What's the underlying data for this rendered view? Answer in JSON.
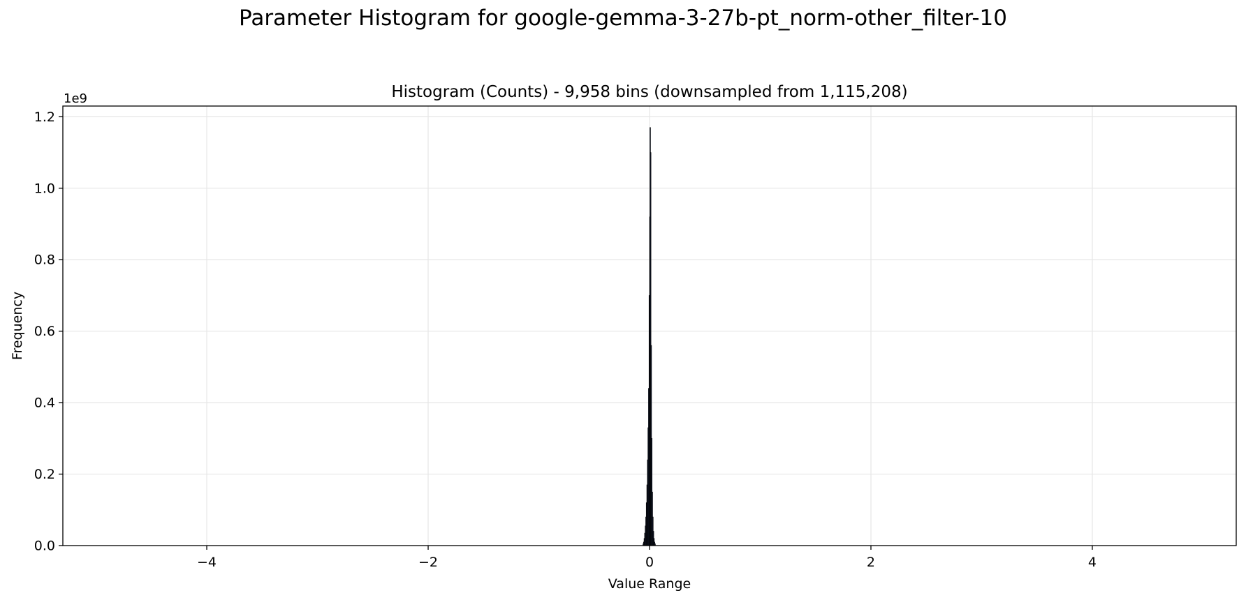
{
  "figure_title": "Parameter Histogram for google-gemma-3-27b-pt_norm-other_filter-10",
  "colors": {
    "bar_fill": "#1f2a4a",
    "bar_edge": "#000000",
    "grid": "#e6e6e6",
    "axis": "#000000"
  },
  "chart_data": {
    "type": "bar",
    "title": "Histogram (Counts) - 9,958 bins (downsampled from 1,115,208)",
    "xlabel": "Value Range",
    "ylabel": "Frequency",
    "y_offset_label": "1e9",
    "xlim": [
      -5.3,
      5.3
    ],
    "ylim": [
      0,
      1.23
    ],
    "xticks": [
      -4,
      -2,
      0,
      2,
      4
    ],
    "xtick_labels": [
      "−4",
      "−2",
      "0",
      "2",
      "4"
    ],
    "yticks": [
      0.0,
      0.2,
      0.4,
      0.6,
      0.8,
      1.0,
      1.2
    ],
    "ytick_labels": [
      "0.0",
      "0.2",
      "0.4",
      "0.6",
      "0.8",
      "1.0",
      "1.2"
    ],
    "grid": true,
    "bin_width": 0.005,
    "bins": [
      [
        -0.06,
        0.005
      ],
      [
        -0.055,
        0.01
      ],
      [
        -0.05,
        0.02
      ],
      [
        -0.045,
        0.035
      ],
      [
        -0.04,
        0.055
      ],
      [
        -0.035,
        0.08
      ],
      [
        -0.03,
        0.12
      ],
      [
        -0.025,
        0.17
      ],
      [
        -0.02,
        0.24
      ],
      [
        -0.015,
        0.33
      ],
      [
        -0.01,
        0.44
      ],
      [
        -0.005,
        0.7
      ],
      [
        0.0,
        0.92
      ],
      [
        0.003,
        1.17
      ],
      [
        0.007,
        1.1
      ],
      [
        0.012,
        0.56
      ],
      [
        0.017,
        0.3
      ],
      [
        0.022,
        0.15
      ],
      [
        0.027,
        0.08
      ],
      [
        0.032,
        0.04
      ],
      [
        0.037,
        0.02
      ],
      [
        0.042,
        0.01
      ],
      [
        0.047,
        0.005
      ]
    ]
  }
}
